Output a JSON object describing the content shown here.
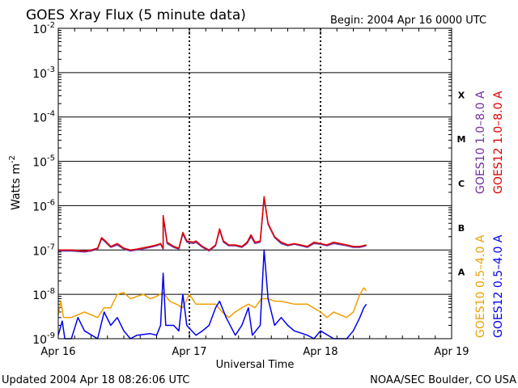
{
  "chart_data": {
    "type": "line",
    "title": "GOES Xray Flux (5 minute data)",
    "begin_label": "Begin:  2004 Apr 16 0000 UTC",
    "xlabel": "Universal Time",
    "ylabel": "Watts m",
    "ylabel_exponent": "-2",
    "y_scale": "log",
    "ylim": [
      1e-09,
      0.01
    ],
    "y_ticks": [
      {
        "base": "10",
        "exp": "-2"
      },
      {
        "base": "10",
        "exp": "-3"
      },
      {
        "base": "10",
        "exp": "-4"
      },
      {
        "base": "10",
        "exp": "-5"
      },
      {
        "base": "10",
        "exp": "-6"
      },
      {
        "base": "10",
        "exp": "-7"
      },
      {
        "base": "10",
        "exp": "-8"
      },
      {
        "base": "10",
        "exp": "-9"
      }
    ],
    "x_range_days": [
      0,
      3
    ],
    "x_ticks": [
      "Apr 16",
      "Apr 17",
      "Apr 18",
      "Apr 19"
    ],
    "flare_classes": [
      {
        "label": "X",
        "exp": -3.5
      },
      {
        "label": "M",
        "exp": -4.5
      },
      {
        "label": "C",
        "exp": -5.5
      },
      {
        "label": "B",
        "exp": -6.5
      },
      {
        "label": "A",
        "exp": -7.5
      }
    ],
    "legend_right": [
      {
        "label": "GOES12 1.0–8.0 A",
        "color": "#e00000"
      },
      {
        "label": "GOES10 1.0–8.0 A",
        "color": "#7030a0"
      },
      {
        "label": "GOES12 0.5–4.0 A",
        "color": "#0000ee"
      },
      {
        "label": "GOES10 0.5–4.0 A",
        "color": "#f0a000"
      }
    ],
    "colors": {
      "goes12_long": "#e00000",
      "goes10_long": "#7030a0",
      "goes12_short": "#0000ee",
      "goes10_short": "#f0a000",
      "grid": "#000000"
    },
    "series": [
      {
        "name": "GOES12 1.0–8.0 A",
        "points": [
          [
            0,
            1e-07
          ],
          [
            0.1,
            1e-07
          ],
          [
            0.2,
            9.5e-08
          ],
          [
            0.25,
            1e-07
          ],
          [
            0.3,
            1.1e-07
          ],
          [
            0.33,
            1.9e-07
          ],
          [
            0.36,
            1.6e-07
          ],
          [
            0.4,
            1.2e-07
          ],
          [
            0.45,
            1.4e-07
          ],
          [
            0.5,
            1.1e-07
          ],
          [
            0.55,
            1e-07
          ],
          [
            0.6,
            1.05e-07
          ],
          [
            0.7,
            1.2e-07
          ],
          [
            0.75,
            1.3e-07
          ],
          [
            0.78,
            1.4e-07
          ],
          [
            0.8,
            1.1e-07
          ],
          [
            0.8,
            6e-07
          ],
          [
            0.83,
            1.5e-07
          ],
          [
            0.88,
            1.2e-07
          ],
          [
            0.92,
            1.1e-07
          ],
          [
            0.95,
            2.5e-07
          ],
          [
            0.98,
            1.6e-07
          ],
          [
            1.03,
            1.5e-07
          ],
          [
            1.05,
            1.6e-07
          ],
          [
            1.1,
            1.2e-07
          ],
          [
            1.15,
            1e-07
          ],
          [
            1.2,
            1.3e-07
          ],
          [
            1.23,
            3e-07
          ],
          [
            1.26,
            1.6e-07
          ],
          [
            1.3,
            1.3e-07
          ],
          [
            1.35,
            1.3e-07
          ],
          [
            1.4,
            1.2e-07
          ],
          [
            1.44,
            1.5e-07
          ],
          [
            1.47,
            2.2e-07
          ],
          [
            1.5,
            1.5e-07
          ],
          [
            1.54,
            1.6e-07
          ],
          [
            1.57,
            1.6e-06
          ],
          [
            1.6,
            4e-07
          ],
          [
            1.65,
            2e-07
          ],
          [
            1.7,
            1.5e-07
          ],
          [
            1.75,
            1.3e-07
          ],
          [
            1.8,
            1.4e-07
          ],
          [
            1.85,
            1.3e-07
          ],
          [
            1.9,
            1.2e-07
          ],
          [
            1.95,
            1.5e-07
          ],
          [
            2.0,
            1.4e-07
          ],
          [
            2.05,
            1.3e-07
          ],
          [
            2.1,
            1.5e-07
          ],
          [
            2.2,
            1.3e-07
          ],
          [
            2.25,
            1.2e-07
          ],
          [
            2.3,
            1.2e-07
          ],
          [
            2.35,
            1.3e-07
          ]
        ]
      },
      {
        "name": "GOES10 1.0–8.0 A",
        "points": [
          [
            0,
            9.5e-08
          ],
          [
            0.1,
            9.5e-08
          ],
          [
            0.2,
            9e-08
          ],
          [
            0.25,
            9.5e-08
          ],
          [
            0.3,
            1.05e-07
          ],
          [
            0.33,
            1.8e-07
          ],
          [
            0.36,
            1.5e-07
          ],
          [
            0.4,
            1.15e-07
          ],
          [
            0.45,
            1.3e-07
          ],
          [
            0.5,
            1.05e-07
          ],
          [
            0.55,
            9.5e-08
          ],
          [
            0.6,
            1e-07
          ],
          [
            0.7,
            1.15e-07
          ],
          [
            0.75,
            1.25e-07
          ],
          [
            0.78,
            1.35e-07
          ],
          [
            0.8,
            1.05e-07
          ],
          [
            0.8,
            5.5e-07
          ],
          [
            0.83,
            1.4e-07
          ],
          [
            0.88,
            1.15e-07
          ],
          [
            0.92,
            1.05e-07
          ],
          [
            0.95,
            2.3e-07
          ],
          [
            0.98,
            1.5e-07
          ],
          [
            1.03,
            1.4e-07
          ],
          [
            1.05,
            1.5e-07
          ],
          [
            1.1,
            1.15e-07
          ],
          [
            1.15,
            9.5e-08
          ],
          [
            1.2,
            1.25e-07
          ],
          [
            1.23,
            2.8e-07
          ],
          [
            1.26,
            1.5e-07
          ],
          [
            1.3,
            1.25e-07
          ],
          [
            1.35,
            1.25e-07
          ],
          [
            1.4,
            1.15e-07
          ],
          [
            1.44,
            1.4e-07
          ],
          [
            1.47,
            2e-07
          ],
          [
            1.5,
            1.4e-07
          ],
          [
            1.54,
            1.5e-07
          ],
          [
            1.57,
            1.5e-06
          ],
          [
            1.6,
            3.8e-07
          ],
          [
            1.65,
            1.9e-07
          ],
          [
            1.7,
            1.4e-07
          ],
          [
            1.75,
            1.25e-07
          ],
          [
            1.8,
            1.35e-07
          ],
          [
            1.85,
            1.25e-07
          ],
          [
            1.9,
            1.15e-07
          ],
          [
            1.95,
            1.4e-07
          ],
          [
            2.0,
            1.35e-07
          ],
          [
            2.05,
            1.25e-07
          ],
          [
            2.1,
            1.4e-07
          ],
          [
            2.2,
            1.25e-07
          ],
          [
            2.25,
            1.15e-07
          ],
          [
            2.3,
            1.15e-07
          ],
          [
            2.35,
            1.25e-07
          ]
        ]
      },
      {
        "name": "GOES10 0.5–4.0 A",
        "points": [
          [
            0,
            3.5e-09
          ],
          [
            0.02,
            7e-09
          ],
          [
            0.04,
            3e-09
          ],
          [
            0.1,
            3e-09
          ],
          [
            0.2,
            4e-09
          ],
          [
            0.3,
            3e-09
          ],
          [
            0.35,
            5e-09
          ],
          [
            0.4,
            5e-09
          ],
          [
            0.45,
            1e-08
          ],
          [
            0.5,
            1.1e-08
          ],
          [
            0.55,
            8e-09
          ],
          [
            0.6,
            9e-09
          ],
          [
            0.65,
            1e-08
          ],
          [
            0.7,
            8e-09
          ],
          [
            0.75,
            9e-09
          ],
          [
            0.8,
            1.1e-08
          ],
          [
            0.85,
            7e-09
          ],
          [
            0.9,
            6e-09
          ],
          [
            0.95,
            5e-09
          ],
          [
            1.0,
            1e-08
          ],
          [
            1.05,
            6e-09
          ],
          [
            1.1,
            6e-09
          ],
          [
            1.15,
            6e-09
          ],
          [
            1.2,
            6e-09
          ],
          [
            1.25,
            4e-09
          ],
          [
            1.3,
            3e-09
          ],
          [
            1.35,
            4e-09
          ],
          [
            1.4,
            5e-09
          ],
          [
            1.45,
            6e-09
          ],
          [
            1.5,
            5e-09
          ],
          [
            1.55,
            8e-09
          ],
          [
            1.6,
            8e-09
          ],
          [
            1.65,
            7e-09
          ],
          [
            1.7,
            7e-09
          ],
          [
            1.8,
            6e-09
          ],
          [
            1.9,
            6e-09
          ],
          [
            2.0,
            4e-09
          ],
          [
            2.05,
            3e-09
          ],
          [
            2.1,
            4e-09
          ],
          [
            2.2,
            3e-09
          ],
          [
            2.25,
            4e-09
          ],
          [
            2.3,
            1e-08
          ],
          [
            2.33,
            1.4e-08
          ],
          [
            2.35,
            1.2e-08
          ]
        ]
      },
      {
        "name": "GOES12 0.5–4.0 A",
        "points": [
          [
            0,
            1.2e-09
          ],
          [
            0.03,
            2.5e-09
          ],
          [
            0.05,
            1e-09
          ],
          [
            0.1,
            1e-09
          ],
          [
            0.15,
            3e-09
          ],
          [
            0.2,
            1.5e-09
          ],
          [
            0.3,
            1e-09
          ],
          [
            0.35,
            4e-09
          ],
          [
            0.4,
            2e-09
          ],
          [
            0.45,
            3e-09
          ],
          [
            0.5,
            1.5e-09
          ],
          [
            0.55,
            1e-09
          ],
          [
            0.6,
            1.2e-09
          ],
          [
            0.7,
            1.3e-09
          ],
          [
            0.75,
            1.2e-09
          ],
          [
            0.78,
            2e-09
          ],
          [
            0.8,
            3e-08
          ],
          [
            0.82,
            2e-09
          ],
          [
            0.88,
            2e-09
          ],
          [
            0.92,
            1.5e-09
          ],
          [
            0.95,
            1e-08
          ],
          [
            0.98,
            2e-09
          ],
          [
            1.05,
            1.2e-09
          ],
          [
            1.1,
            1.5e-09
          ],
          [
            1.15,
            2e-09
          ],
          [
            1.2,
            5e-09
          ],
          [
            1.23,
            7e-09
          ],
          [
            1.28,
            3e-09
          ],
          [
            1.35,
            1.2e-09
          ],
          [
            1.4,
            2e-09
          ],
          [
            1.45,
            5e-09
          ],
          [
            1.48,
            1.2e-09
          ],
          [
            1.54,
            2e-09
          ],
          [
            1.57,
            1e-07
          ],
          [
            1.6,
            8e-09
          ],
          [
            1.65,
            2e-09
          ],
          [
            1.7,
            3e-09
          ],
          [
            1.75,
            2e-09
          ],
          [
            1.8,
            1.5e-09
          ],
          [
            1.9,
            1.2e-09
          ],
          [
            1.95,
            1e-09
          ],
          [
            2.0,
            1.5e-09
          ],
          [
            2.1,
            1e-09
          ],
          [
            2.2,
            1e-09
          ],
          [
            2.25,
            1.5e-09
          ],
          [
            2.3,
            3e-09
          ],
          [
            2.33,
            5e-09
          ],
          [
            2.35,
            6e-09
          ]
        ]
      }
    ]
  },
  "footer": {
    "updated": "Updated 2004 Apr 18 08:26:06 UTC",
    "credit": "NOAA/SEC Boulder, CO USA"
  }
}
